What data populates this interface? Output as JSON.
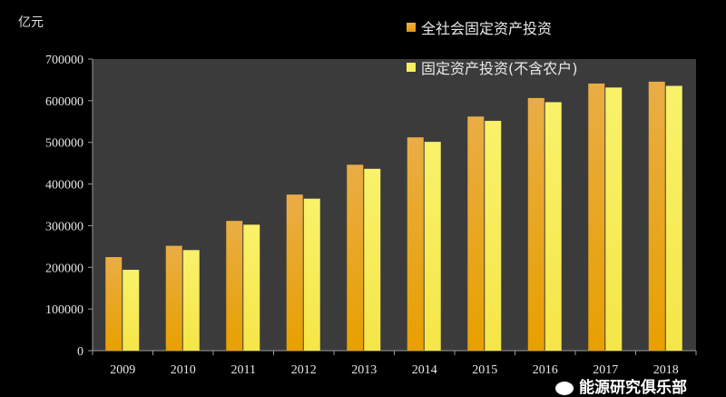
{
  "chart_data": {
    "type": "bar",
    "title": "",
    "ylabel": "亿元",
    "xlabel": "",
    "ylim": [
      0,
      700000
    ],
    "yticks": [
      0,
      100000,
      200000,
      300000,
      400000,
      500000,
      600000,
      700000
    ],
    "categories": [
      "2009",
      "2010",
      "2011",
      "2012",
      "2013",
      "2014",
      "2015",
      "2016",
      "2017",
      "2018"
    ],
    "series": [
      {
        "name": "全社会固定资产投资",
        "color": "#e8a51c",
        "values": [
          224599,
          251684,
          311485,
          374695,
          446294,
          512021,
          561999,
          606466,
          641238,
          645675
        ]
      },
      {
        "name": "固定资产投资(不含农户)",
        "color": "#f7ef5a",
        "values": [
          194139,
          241431,
          302396,
          364854,
          436528,
          501265,
          551590,
          596501,
          631684,
          635636
        ]
      }
    ],
    "legend_position": "top-right",
    "grid": false
  },
  "watermark": "能源研究俱乐部",
  "colors": {
    "plot_bg": "#3c3b3b",
    "page_bg": "#000000"
  }
}
